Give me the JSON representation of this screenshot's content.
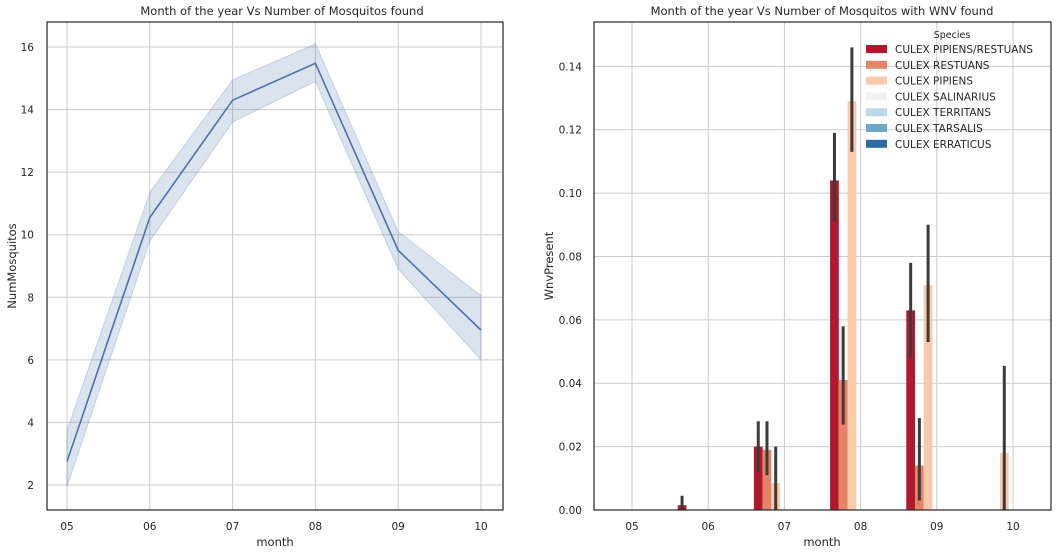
{
  "chart_data": [
    {
      "type": "line",
      "title": "Month of the year Vs Number of Mosquitos found",
      "xlabel": "month",
      "ylabel": "NumMosquitos",
      "categories": [
        "05",
        "06",
        "07",
        "08",
        "09",
        "10"
      ],
      "yticks": [
        "2",
        "4",
        "6",
        "8",
        "10",
        "12",
        "14",
        "16"
      ],
      "ylim": [
        1.2,
        16.8
      ],
      "grid": true,
      "series": [
        {
          "values": [
            2.75,
            10.55,
            14.3,
            15.48,
            9.5,
            6.95
          ],
          "ci_low": [
            1.95,
            9.8,
            13.6,
            14.9,
            8.9,
            6.0
          ],
          "ci_high": [
            3.75,
            11.35,
            14.95,
            16.1,
            10.1,
            8.05
          ],
          "color": "#4c72b0"
        }
      ]
    },
    {
      "type": "bar",
      "title": "Month of the year Vs Number of Mosquitos with WNV found",
      "xlabel": "month",
      "ylabel": "WnvPresent",
      "categories": [
        "05",
        "06",
        "07",
        "08",
        "09",
        "10"
      ],
      "yticks": [
        "0.00",
        "0.02",
        "0.04",
        "0.06",
        "0.08",
        "0.10",
        "0.12",
        "0.14"
      ],
      "ylim": [
        0,
        0.154
      ],
      "grid": true,
      "legend": {
        "title": "Species",
        "position": "top-right"
      },
      "series": [
        {
          "name": "CULEX PIPIENS/RESTUANS",
          "color": "#b2182b",
          "values": [
            0,
            0.0015,
            0.02,
            0.104,
            0.063,
            0
          ],
          "err": [
            null,
            [
              0,
              0.0045
            ],
            [
              0.012,
              0.028
            ],
            [
              0.091,
              0.119
            ],
            [
              0.048,
              0.078
            ],
            null
          ]
        },
        {
          "name": "CULEX RESTUANS",
          "color": "#e58368",
          "values": [
            0,
            0,
            0.019,
            0.041,
            0.014,
            0
          ],
          "err": [
            null,
            null,
            [
              0.011,
              0.028
            ],
            [
              0.027,
              0.058
            ],
            [
              0.003,
              0.029
            ],
            null
          ]
        },
        {
          "name": "CULEX PIPIENS",
          "color": "#f9c9ac",
          "values": [
            0,
            0,
            0.0085,
            0.129,
            0.071,
            0.018
          ],
          "err": [
            null,
            null,
            [
              0,
              0.02
            ],
            [
              0.113,
              0.146
            ],
            [
              0.053,
              0.09
            ],
            [
              0,
              0.0455
            ]
          ]
        },
        {
          "name": "CULEX SALINARIUS",
          "color": "#f2f2f2",
          "values": [
            0,
            0,
            0,
            0,
            0,
            0
          ],
          "err": [
            null,
            null,
            null,
            null,
            null,
            null
          ]
        },
        {
          "name": "CULEX TERRITANS",
          "color": "#bcd7e8",
          "values": [
            0,
            0,
            0,
            0,
            0,
            0
          ],
          "err": [
            null,
            null,
            null,
            null,
            null,
            null
          ]
        },
        {
          "name": "CULEX TARSALIS",
          "color": "#6ea6cc",
          "values": [
            0,
            0,
            0,
            0,
            0,
            0
          ],
          "err": [
            null,
            null,
            null,
            null,
            null,
            null
          ]
        },
        {
          "name": "CULEX ERRATICUS",
          "color": "#2d6ba6",
          "values": [
            0,
            0,
            0,
            0,
            0,
            0
          ],
          "err": [
            null,
            null,
            null,
            null,
            null,
            null
          ]
        }
      ]
    }
  ]
}
